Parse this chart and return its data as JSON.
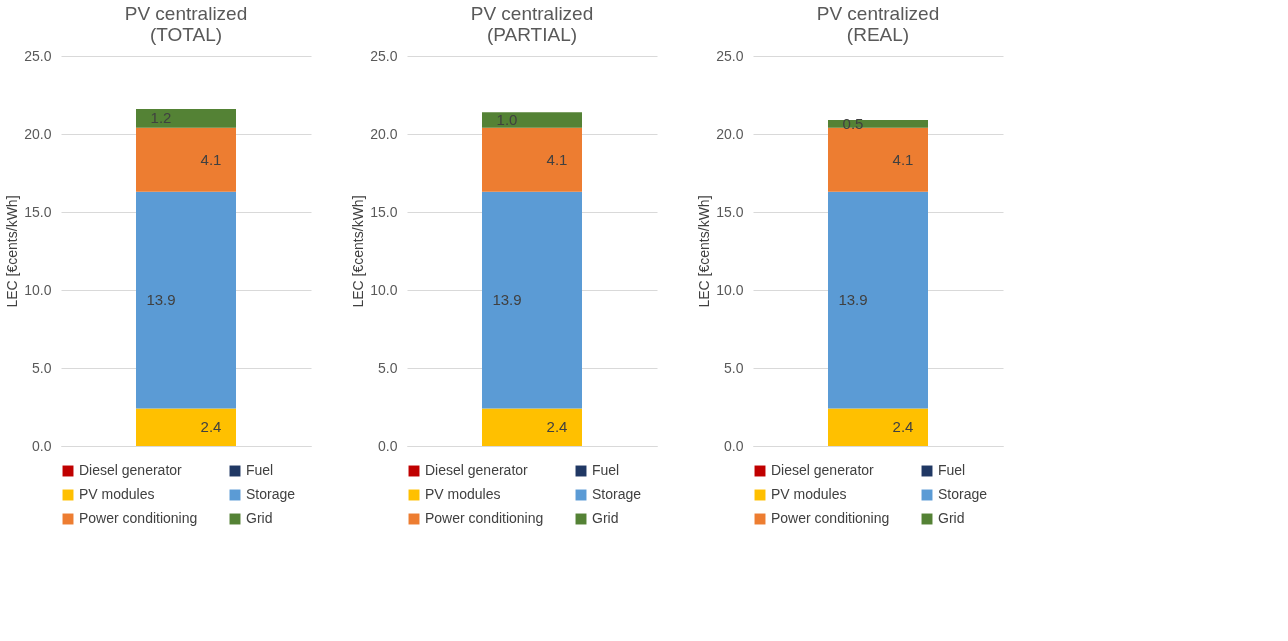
{
  "chart_data": [
    {
      "type": "bar",
      "stacked": true,
      "title": "PV centralized\n(TOTAL)",
      "ylabel": "LEC [€cents/kWh]",
      "categories": [
        null
      ],
      "ylim": [
        0,
        25
      ],
      "yticks": [
        {
          "value": 0,
          "label": "0.0"
        },
        {
          "value": 5,
          "label": "5.0"
        },
        {
          "value": 10,
          "label": "10.0"
        },
        {
          "value": 15,
          "label": "15.0"
        },
        {
          "value": 20,
          "label": "20.0"
        },
        {
          "value": 25,
          "label": "25.0"
        }
      ],
      "grid": "y",
      "legend": "bottom",
      "tick_labels": "y",
      "series": [
        {
          "name": "Diesel generator",
          "color": "#c00000",
          "values": [
            0
          ],
          "value_labels": [
            null
          ]
        },
        {
          "name": "Fuel",
          "color": "#203864",
          "values": [
            0
          ],
          "value_labels": [
            null
          ]
        },
        {
          "name": "PV modules",
          "color": "#ffc000",
          "values": [
            2.4
          ],
          "value_labels": [
            "2.4"
          ]
        },
        {
          "name": "Storage",
          "color": "#5b9bd5",
          "values": [
            13.9
          ],
          "value_labels": [
            "13.9"
          ]
        },
        {
          "name": "Power conditioning",
          "color": "#ed7d31",
          "values": [
            4.1
          ],
          "value_labels": [
            "4.1"
          ]
        },
        {
          "name": "Grid",
          "color": "#548235",
          "values": [
            1.2
          ],
          "value_labels": [
            "1.2"
          ]
        }
      ]
    },
    {
      "type": "bar",
      "stacked": true,
      "title": "PV centralized\n(PARTIAL)",
      "ylabel": "LEC [€cents/kWh]",
      "categories": [
        null
      ],
      "ylim": [
        0,
        25
      ],
      "yticks": [
        {
          "value": 0,
          "label": "0.0"
        },
        {
          "value": 5,
          "label": "5.0"
        },
        {
          "value": 10,
          "label": "10.0"
        },
        {
          "value": 15,
          "label": "15.0"
        },
        {
          "value": 20,
          "label": "20.0"
        },
        {
          "value": 25,
          "label": "25.0"
        }
      ],
      "grid": "y",
      "legend": "bottom",
      "tick_labels": "y",
      "series": [
        {
          "name": "Diesel generator",
          "color": "#c00000",
          "values": [
            0
          ],
          "value_labels": [
            null
          ]
        },
        {
          "name": "Fuel",
          "color": "#203864",
          "values": [
            0
          ],
          "value_labels": [
            null
          ]
        },
        {
          "name": "PV modules",
          "color": "#ffc000",
          "values": [
            2.4
          ],
          "value_labels": [
            "2.4"
          ]
        },
        {
          "name": "Storage",
          "color": "#5b9bd5",
          "values": [
            13.9
          ],
          "value_labels": [
            "13.9"
          ]
        },
        {
          "name": "Power conditioning",
          "color": "#ed7d31",
          "values": [
            4.1
          ],
          "value_labels": [
            "4.1"
          ]
        },
        {
          "name": "Grid",
          "color": "#548235",
          "values": [
            1.0
          ],
          "value_labels": [
            "1.0"
          ]
        }
      ]
    },
    {
      "type": "bar",
      "stacked": true,
      "title": "PV centralized\n(REAL)",
      "ylabel": "LEC [€cents/kWh]",
      "categories": [
        null
      ],
      "ylim": [
        0,
        25
      ],
      "yticks": [
        {
          "value": 0,
          "label": "0.0"
        },
        {
          "value": 5,
          "label": "5.0"
        },
        {
          "value": 10,
          "label": "10.0"
        },
        {
          "value": 15,
          "label": "15.0"
        },
        {
          "value": 20,
          "label": "20.0"
        },
        {
          "value": 25,
          "label": "25.0"
        }
      ],
      "grid": "y",
      "legend": "bottom",
      "tick_labels": "y",
      "series": [
        {
          "name": "Diesel generator",
          "color": "#c00000",
          "values": [
            0
          ],
          "value_labels": [
            null
          ]
        },
        {
          "name": "Fuel",
          "color": "#203864",
          "values": [
            0
          ],
          "value_labels": [
            null
          ]
        },
        {
          "name": "PV modules",
          "color": "#ffc000",
          "values": [
            2.4
          ],
          "value_labels": [
            "2.4"
          ]
        },
        {
          "name": "Storage",
          "color": "#5b9bd5",
          "values": [
            13.9
          ],
          "value_labels": [
            "13.9"
          ]
        },
        {
          "name": "Power conditioning",
          "color": "#ed7d31",
          "values": [
            4.1
          ],
          "value_labels": [
            "4.1"
          ]
        },
        {
          "name": "Grid",
          "color": "#548235",
          "values": [
            0.5
          ],
          "value_labels": [
            "0.5"
          ]
        }
      ]
    }
  ]
}
